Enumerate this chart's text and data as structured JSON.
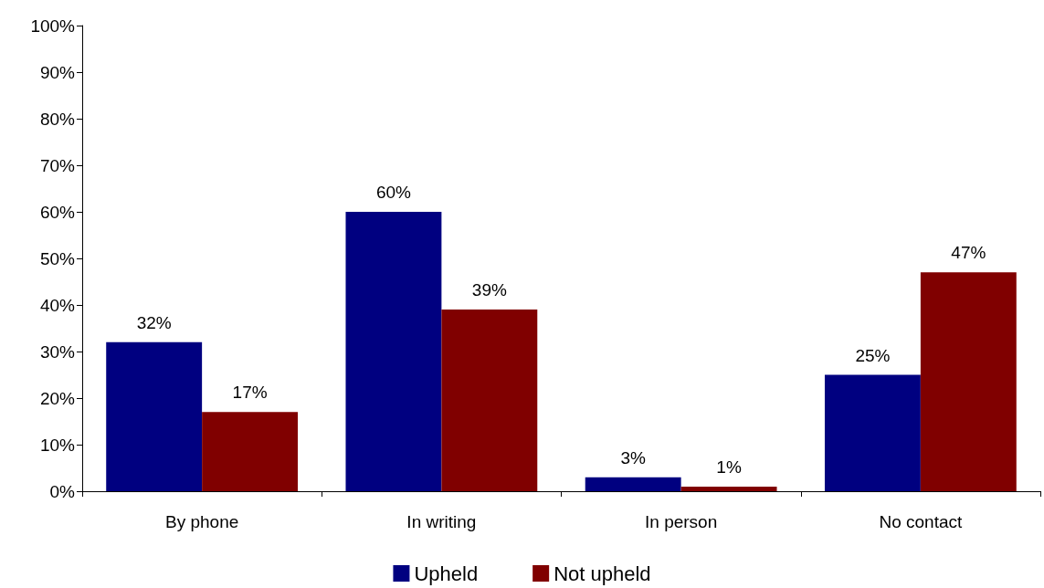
{
  "chart_data": {
    "type": "bar",
    "categories": [
      "By phone",
      "In writing",
      "In person",
      "No contact"
    ],
    "series": [
      {
        "name": "Upheld",
        "color": "#000080",
        "values": [
          32,
          60,
          3,
          25
        ],
        "value_labels": [
          "32%",
          "60%",
          "3%",
          "25%"
        ]
      },
      {
        "name": "Not upheld",
        "color": "#800000",
        "values": [
          17,
          39,
          1,
          47
        ],
        "value_labels": [
          "17%",
          "39%",
          "1%",
          "47%"
        ]
      }
    ],
    "ylim": [
      0,
      100
    ],
    "yticks": [
      {
        "value": 0,
        "label": "0%"
      },
      {
        "value": 10,
        "label": "10%"
      },
      {
        "value": 20,
        "label": "20%"
      },
      {
        "value": 30,
        "label": "30%"
      },
      {
        "value": 40,
        "label": "40%"
      },
      {
        "value": 50,
        "label": "50%"
      },
      {
        "value": 60,
        "label": "60%"
      },
      {
        "value": 70,
        "label": "70%"
      },
      {
        "value": 80,
        "label": "80%"
      },
      {
        "value": 90,
        "label": "90%"
      },
      {
        "value": 100,
        "label": "100%"
      }
    ],
    "grid": false,
    "legend": "bottom"
  }
}
